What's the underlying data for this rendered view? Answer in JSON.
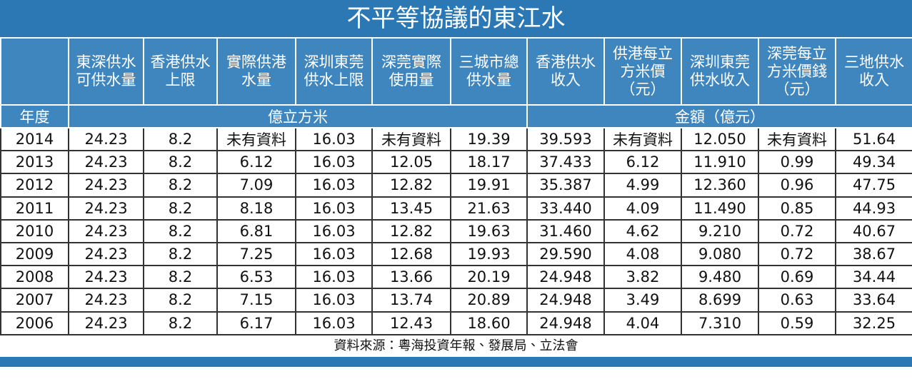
{
  "title": "不平等協議的東江水",
  "header": {
    "columns": [
      [
        ""
      ],
      [
        "東深供水",
        "可供水量"
      ],
      [
        "香港供水",
        "上限"
      ],
      [
        "實際供港",
        "水量"
      ],
      [
        "深圳東莞",
        "供水上限"
      ],
      [
        "深莞實際",
        "使用量"
      ],
      [
        "三城市總",
        "供水量"
      ],
      [
        "香港供水",
        "收入"
      ],
      [
        "供港每立",
        "方米價",
        "（元）"
      ],
      [
        "深圳東莞",
        "供水收入"
      ],
      [
        "深莞每立",
        "方米價錢",
        "（元）"
      ],
      [
        "三地供水",
        "收入"
      ]
    ]
  },
  "units": [
    "年度",
    "億立方米",
    "金額（億元）"
  ],
  "rows": [
    [
      "2014",
      "24.23",
      "8.2",
      "未有資料",
      "16.03",
      "未有資料",
      "19.39",
      "39.593",
      "未有資料",
      "12.050",
      "未有資料",
      "51.64"
    ],
    [
      "2013",
      "24.23",
      "8.2",
      "6.12",
      "16.03",
      "12.05",
      "18.17",
      "37.433",
      "6.12",
      "11.910",
      "0.99",
      "49.34"
    ],
    [
      "2012",
      "24.23",
      "8.2",
      "7.09",
      "16.03",
      "12.82",
      "19.91",
      "35.387",
      "4.99",
      "12.360",
      "0.96",
      "47.75"
    ],
    [
      "2011",
      "24.23",
      "8.2",
      "8.18",
      "16.03",
      "13.45",
      "21.63",
      "33.440",
      "4.09",
      "11.490",
      "0.85",
      "44.93"
    ],
    [
      "2010",
      "24.23",
      "8.2",
      "6.81",
      "16.03",
      "12.82",
      "19.63",
      "31.460",
      "4.62",
      "9.210",
      "0.72",
      "40.67"
    ],
    [
      "2009",
      "24.23",
      "8.2",
      "7.25",
      "16.03",
      "12.68",
      "19.93",
      "29.590",
      "4.08",
      "9.080",
      "0.72",
      "38.67"
    ],
    [
      "2008",
      "24.23",
      "8.2",
      "6.53",
      "16.03",
      "13.66",
      "20.19",
      "24.948",
      "3.82",
      "9.480",
      "0.69",
      "34.44"
    ],
    [
      "2007",
      "24.23",
      "8.2",
      "7.15",
      "16.03",
      "13.74",
      "20.89",
      "24.948",
      "3.49",
      "8.699",
      "0.63",
      "33.64"
    ],
    [
      "2006",
      "24.23",
      "8.2",
      "6.17",
      "16.03",
      "12.43",
      "18.60",
      "24.948",
      "4.04",
      "7.310",
      "0.59",
      "32.25"
    ]
  ],
  "source": "資料來源：粵海投資年報、發展局、立法會"
}
